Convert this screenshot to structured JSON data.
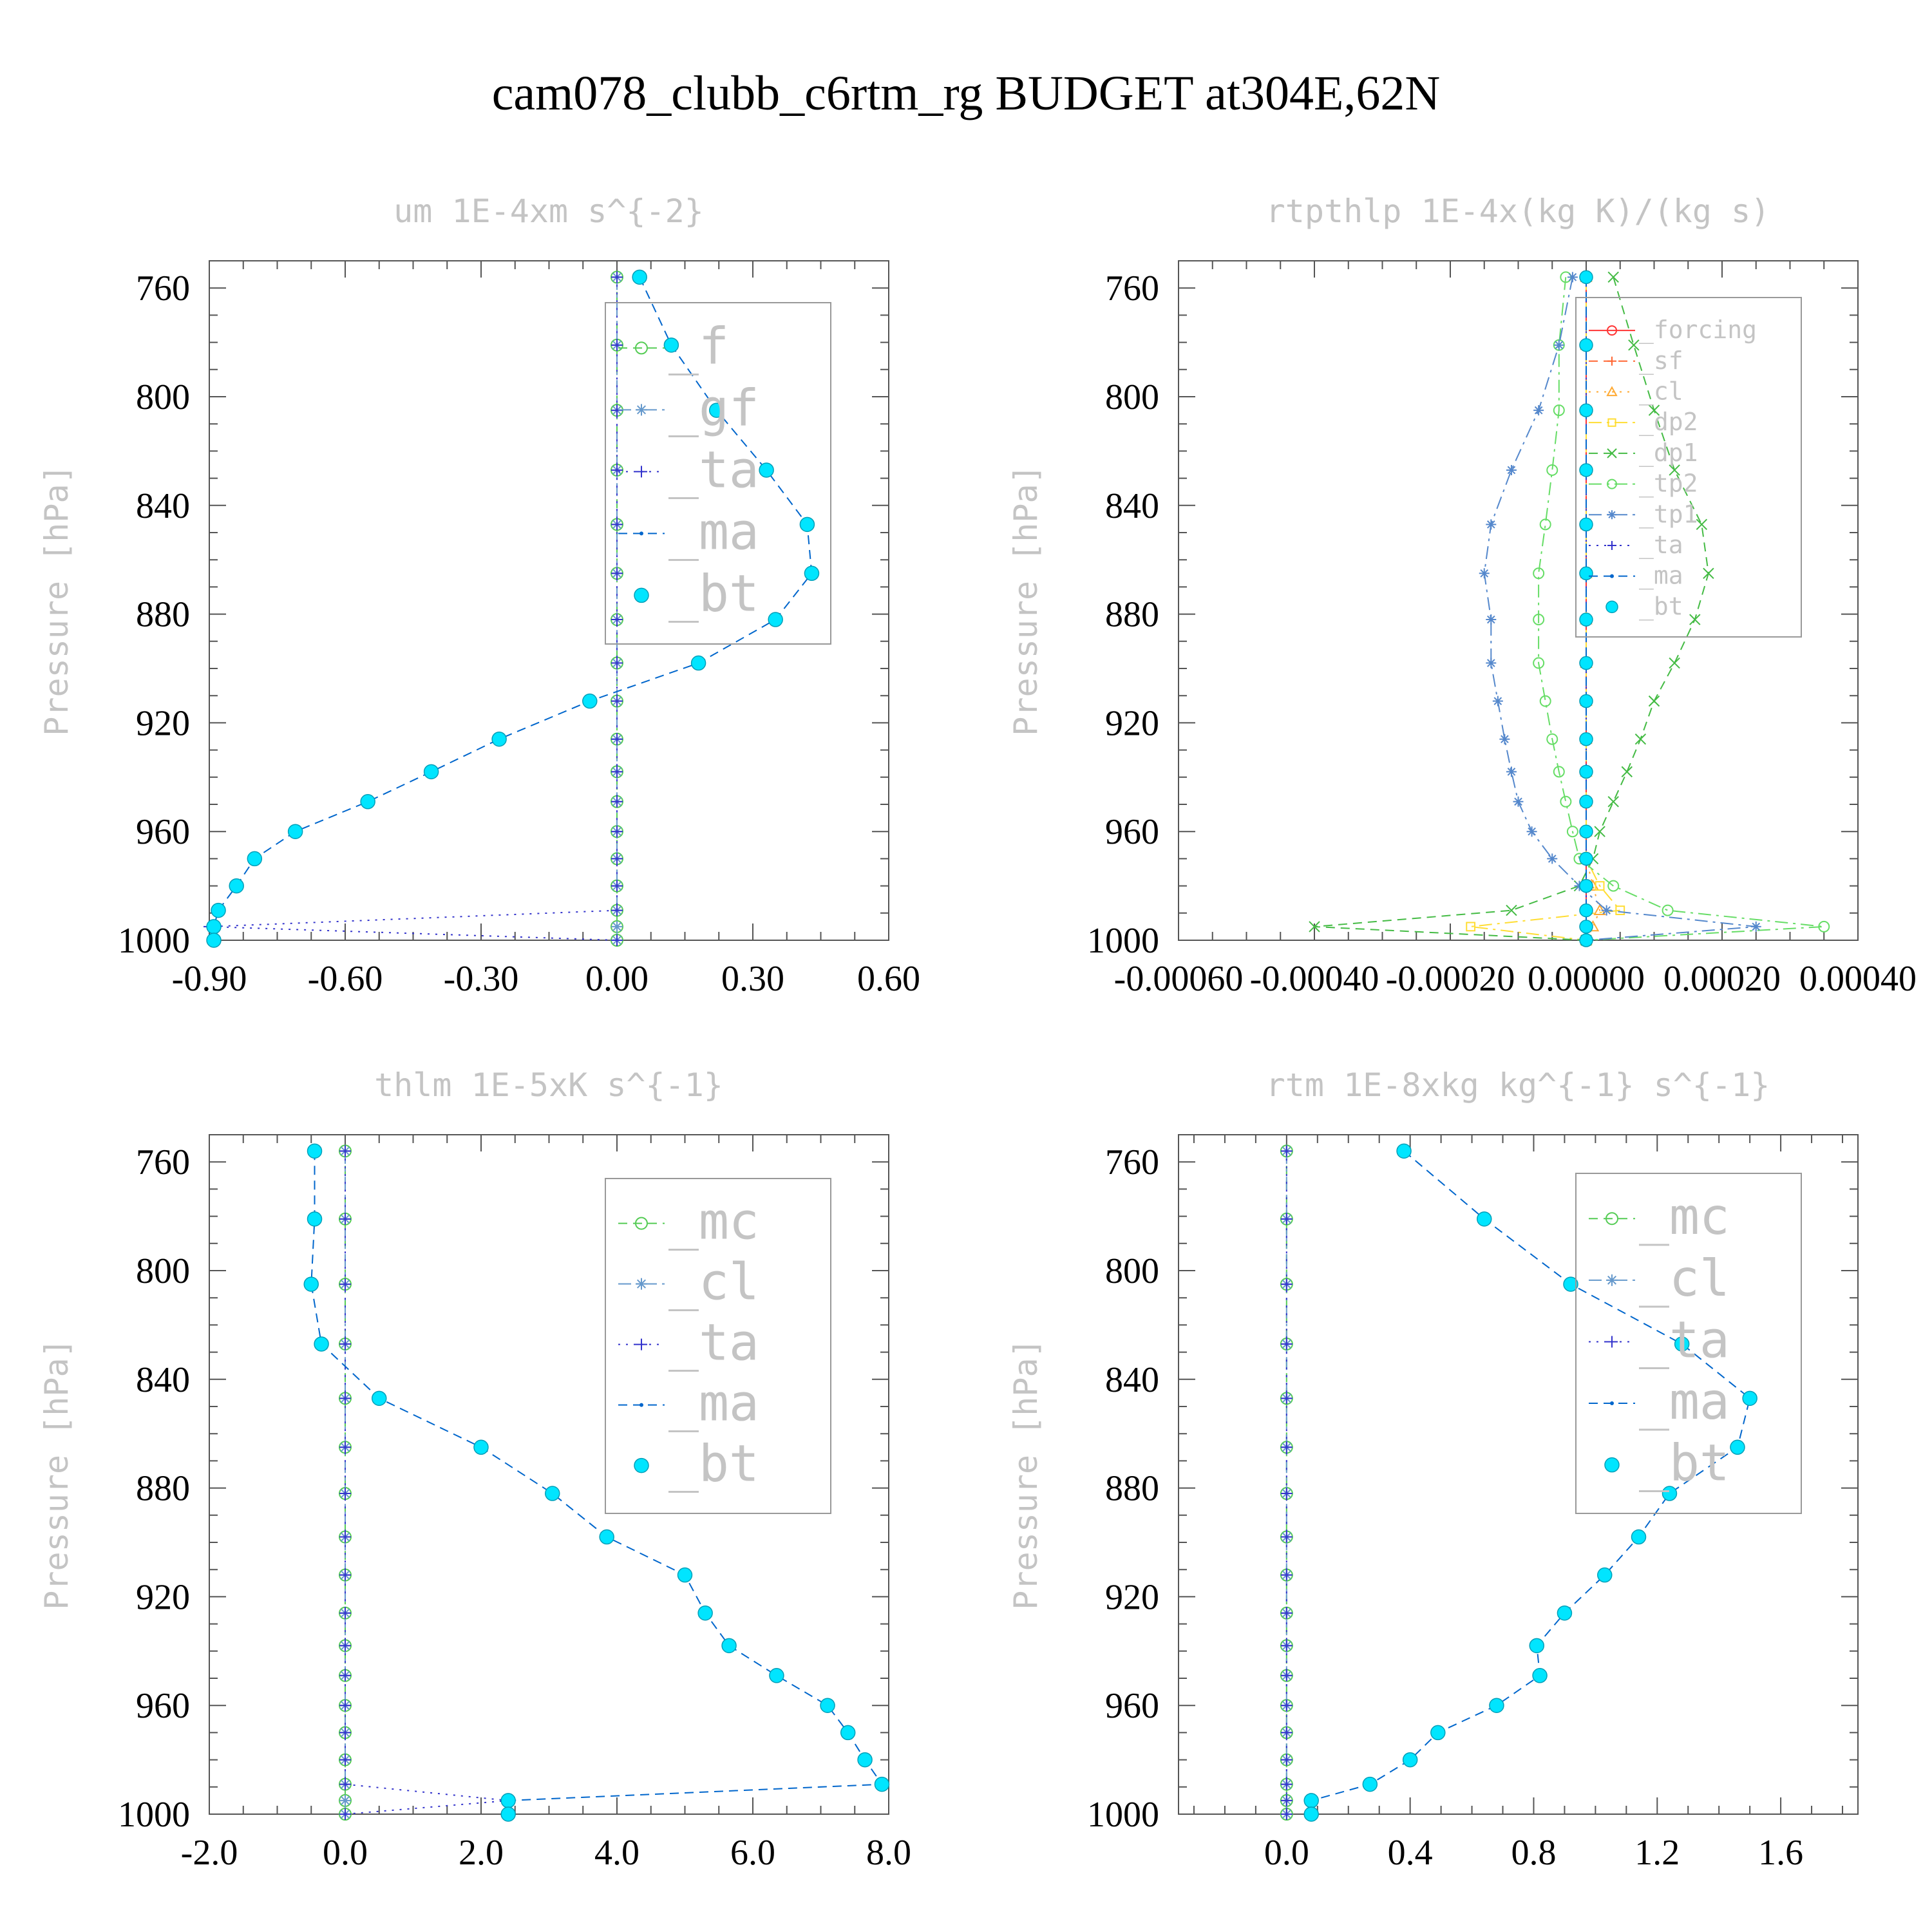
{
  "title": "cam078_clubb_c6rtm_rg  BUDGET at304E,62N",
  "pressure_levels": [
    756,
    781,
    805,
    827,
    847,
    865,
    882,
    898,
    912,
    926,
    938,
    949,
    960,
    970,
    980,
    989,
    995,
    1000
  ],
  "chart_data": [
    {
      "type": "line",
      "title": "um  1E-4xm s^{-2}",
      "ylabel": "Pressure [hPa]",
      "ylim": [
        1000,
        750
      ],
      "xlim": [
        -0.9,
        0.6
      ],
      "xticks": [
        -0.9,
        -0.6,
        -0.3,
        0.0,
        0.3,
        0.6
      ],
      "xtick_labels": [
        "-0.90",
        "-0.60",
        "-0.30",
        "0.00",
        "0.30",
        "0.60"
      ],
      "yticks": [
        760,
        800,
        840,
        880,
        920,
        960,
        1000
      ],
      "legend_position": "top-right",
      "legend_font_size": "large",
      "series": [
        {
          "name": "_f",
          "color": "#55cc55",
          "marker": "circle",
          "dash": "dash",
          "values": [
            0,
            0,
            0,
            0,
            0,
            0,
            0,
            0,
            0,
            0,
            0,
            0,
            0,
            0,
            0,
            0,
            0,
            0
          ]
        },
        {
          "name": "_gf",
          "color": "#6699cc",
          "marker": "asterisk",
          "dash": "dashdot",
          "values": [
            0,
            0,
            0,
            0,
            0,
            0,
            0,
            0,
            0,
            0,
            0,
            0,
            0,
            0,
            0,
            0,
            0,
            0
          ]
        },
        {
          "name": "_ta",
          "color": "#3333cc",
          "marker": "plus",
          "dash": "dot",
          "values": [
            0,
            0,
            0,
            0,
            0,
            0,
            0,
            0,
            0,
            0,
            0,
            0,
            0,
            0,
            0,
            0,
            -0.9,
            0
          ]
        },
        {
          "name": "_ma",
          "color": "#0066cc",
          "marker": "dot",
          "dash": "dash",
          "values": [
            0.05,
            0.12,
            0.22,
            0.33,
            0.42,
            0.43,
            0.35,
            0.18,
            -0.06,
            -0.26,
            -0.41,
            -0.55,
            -0.71,
            -0.8,
            -0.84,
            -0.88,
            -0.89,
            -0.89
          ]
        },
        {
          "name": "_bt",
          "color": "#00e5ff",
          "marker": "filled",
          "dash": "none",
          "values": [
            0.05,
            0.12,
            0.22,
            0.33,
            0.42,
            0.43,
            0.35,
            0.18,
            -0.06,
            -0.26,
            -0.41,
            -0.55,
            -0.71,
            -0.8,
            -0.84,
            -0.88,
            -0.89,
            -0.89
          ]
        }
      ]
    },
    {
      "type": "line",
      "title": "rtpthlp  1E-4x(kg K)/(kg s)",
      "ylabel": "Pressure [hPa]",
      "ylim": [
        1000,
        750
      ],
      "xlim": [
        -0.0006,
        0.0004
      ],
      "xticks": [
        -0.0006,
        -0.0004,
        -0.0002,
        0.0,
        0.0002,
        0.0004
      ],
      "xtick_labels": [
        "-0.00060",
        "-0.00040",
        "-0.00020",
        "0.00000",
        "0.00020",
        "0.00040"
      ],
      "yticks": [
        760,
        800,
        840,
        880,
        920,
        960,
        1000
      ],
      "legend_position": "top-right",
      "legend_font_size": "small",
      "series": [
        {
          "name": "_forcing",
          "color": "#ff3333",
          "marker": "circle",
          "dash": "none",
          "values": [
            0,
            0,
            0,
            0,
            0,
            0,
            0,
            0,
            0,
            0,
            0,
            0,
            0,
            0,
            0,
            0,
            0,
            0
          ]
        },
        {
          "name": "_sf",
          "color": "#ff6633",
          "marker": "plus",
          "dash": "dash",
          "values": [
            0,
            0,
            0,
            0,
            0,
            0,
            0,
            0,
            0,
            0,
            0,
            0,
            0,
            0,
            0,
            0,
            0,
            0
          ]
        },
        {
          "name": "_cl",
          "color": "#ffaa33",
          "marker": "triangle",
          "dash": "dot",
          "values": [
            0,
            0,
            0,
            0,
            0,
            0,
            0,
            0,
            0,
            0,
            0,
            0,
            0,
            0,
            1e-05,
            2e-05,
            1e-05,
            0
          ]
        },
        {
          "name": "_dp2",
          "color": "#ffdd33",
          "marker": "square",
          "dash": "dashdot",
          "values": [
            0,
            0,
            0,
            0,
            0,
            0,
            0,
            0,
            0,
            0,
            0,
            0,
            0,
            0,
            2e-05,
            5e-05,
            -0.00017,
            0
          ]
        },
        {
          "name": "_dp1",
          "color": "#44bb44",
          "marker": "x",
          "dash": "dash",
          "values": [
            4e-05,
            7e-05,
            0.0001,
            0.00013,
            0.00017,
            0.00018,
            0.00016,
            0.00013,
            0.0001,
            8e-05,
            6e-05,
            4e-05,
            2e-05,
            1e-05,
            -1e-05,
            -0.00011,
            -0.0004,
            0
          ]
        },
        {
          "name": "_tp2",
          "color": "#66dd66",
          "marker": "circle",
          "dash": "dashdot",
          "values": [
            -3e-05,
            -4e-05,
            -4e-05,
            -5e-05,
            -6e-05,
            -7e-05,
            -7e-05,
            -7e-05,
            -6e-05,
            -5e-05,
            -4e-05,
            -3e-05,
            -2e-05,
            -1e-05,
            4e-05,
            0.00012,
            0.00035,
            0
          ]
        },
        {
          "name": "_tp1",
          "color": "#5588cc",
          "marker": "asterisk",
          "dash": "dashdot",
          "values": [
            -2e-05,
            -4e-05,
            -7e-05,
            -0.00011,
            -0.00014,
            -0.00015,
            -0.00014,
            -0.00014,
            -0.00013,
            -0.00012,
            -0.00011,
            -0.0001,
            -8e-05,
            -5e-05,
            -1e-05,
            3e-05,
            0.00025,
            0
          ]
        },
        {
          "name": "_ta",
          "color": "#3333cc",
          "marker": "plus",
          "dash": "dot",
          "values": [
            0,
            0,
            0,
            0,
            0,
            0,
            0,
            0,
            0,
            0,
            0,
            0,
            0,
            0,
            0,
            0,
            0,
            0
          ]
        },
        {
          "name": "_ma",
          "color": "#0066cc",
          "marker": "dot",
          "dash": "dash",
          "values": [
            0,
            0,
            0,
            0,
            0,
            0,
            0,
            0,
            0,
            0,
            0,
            0,
            0,
            0,
            0,
            0,
            0,
            0
          ]
        },
        {
          "name": "_bt",
          "color": "#00e5ff",
          "marker": "filled",
          "dash": "none",
          "values": [
            0,
            0,
            0,
            0,
            0,
            0,
            0,
            0,
            0,
            0,
            0,
            0,
            0,
            0,
            0,
            0,
            0,
            0
          ]
        }
      ]
    },
    {
      "type": "line",
      "title": "thlm  1E-5xK s^{-1}",
      "ylabel": "Pressure [hPa]",
      "ylim": [
        1000,
        750
      ],
      "xlim": [
        -2.0,
        8.0
      ],
      "xticks": [
        -2.0,
        0.0,
        2.0,
        4.0,
        6.0,
        8.0
      ],
      "xtick_labels": [
        "-2.0",
        "0.0",
        "2.0",
        "4.0",
        "6.0",
        "8.0"
      ],
      "yticks": [
        760,
        800,
        840,
        880,
        920,
        960,
        1000
      ],
      "legend_position": "top-right",
      "legend_font_size": "large",
      "series": [
        {
          "name": "_mc",
          "color": "#55cc55",
          "marker": "circle",
          "dash": "dash",
          "values": [
            0,
            0,
            0,
            0,
            0,
            0,
            0,
            0,
            0,
            0,
            0,
            0,
            0,
            0,
            0,
            0,
            0,
            0
          ]
        },
        {
          "name": "_cl",
          "color": "#6699cc",
          "marker": "asterisk",
          "dash": "dashdot",
          "values": [
            0,
            0,
            0,
            0,
            0,
            0,
            0,
            0,
            0,
            0,
            0,
            0,
            0,
            0,
            0,
            0,
            0,
            0
          ]
        },
        {
          "name": "_ta",
          "color": "#3333cc",
          "marker": "plus",
          "dash": "dot",
          "values": [
            0,
            0,
            0,
            0,
            0,
            0,
            0,
            0,
            0,
            0,
            0,
            0,
            0,
            0,
            0,
            0,
            2.4,
            0
          ]
        },
        {
          "name": "_ma",
          "color": "#0066cc",
          "marker": "dot",
          "dash": "dash",
          "values": [
            -0.45,
            -0.45,
            -0.5,
            -0.35,
            0.5,
            2.0,
            3.05,
            3.85,
            5.0,
            5.3,
            5.65,
            6.35,
            7.1,
            7.4,
            7.65,
            7.9,
            2.4,
            2.4
          ]
        },
        {
          "name": "_bt",
          "color": "#00e5ff",
          "marker": "filled",
          "dash": "none",
          "values": [
            -0.45,
            -0.45,
            -0.5,
            -0.35,
            0.5,
            2.0,
            3.05,
            3.85,
            5.0,
            5.3,
            5.65,
            6.35,
            7.1,
            7.4,
            7.65,
            7.9,
            2.4,
            2.4
          ]
        }
      ]
    },
    {
      "type": "line",
      "title": "rtm  1E-8xkg kg^{-1} s^{-1}",
      "ylabel": "Pressure [hPa]",
      "ylim": [
        1000,
        750
      ],
      "xlim": [
        -0.35,
        1.85
      ],
      "xticks": [
        0.0,
        0.4,
        0.8,
        1.2,
        1.6
      ],
      "xtick_labels": [
        "0.0",
        "0.4",
        "0.8",
        "1.2",
        "1.6"
      ],
      "yticks": [
        760,
        800,
        840,
        880,
        920,
        960,
        1000
      ],
      "legend_position": "top-right",
      "legend_font_size": "large",
      "series": [
        {
          "name": "_mc",
          "color": "#55cc55",
          "marker": "circle",
          "dash": "dash",
          "values": [
            0,
            0,
            0,
            0,
            0,
            0,
            0,
            0,
            0,
            0,
            0,
            0,
            0,
            0,
            0,
            0,
            0,
            0
          ]
        },
        {
          "name": "_cl",
          "color": "#6699cc",
          "marker": "asterisk",
          "dash": "dashdot",
          "values": [
            0,
            0,
            0,
            0,
            0,
            0,
            0,
            0,
            0,
            0,
            0,
            0,
            0,
            0,
            0,
            0,
            0,
            0
          ]
        },
        {
          "name": "_ta",
          "color": "#3333cc",
          "marker": "plus",
          "dash": "dot",
          "values": [
            0,
            0,
            0,
            0,
            0,
            0,
            0,
            0,
            0,
            0,
            0,
            0,
            0,
            0,
            0,
            0,
            0,
            0
          ]
        },
        {
          "name": "_ma",
          "color": "#0066cc",
          "marker": "dot",
          "dash": "dash",
          "values": [
            0.38,
            0.64,
            0.92,
            1.28,
            1.5,
            1.46,
            1.24,
            1.14,
            1.03,
            0.9,
            0.81,
            0.82,
            0.68,
            0.49,
            0.4,
            0.27,
            0.08,
            0.08
          ]
        },
        {
          "name": "_bt",
          "color": "#00e5ff",
          "marker": "filled",
          "dash": "none",
          "values": [
            0.38,
            0.64,
            0.92,
            1.28,
            1.5,
            1.46,
            1.24,
            1.14,
            1.03,
            0.9,
            0.81,
            0.82,
            0.68,
            0.49,
            0.4,
            0.27,
            0.08,
            0.08
          ]
        }
      ]
    }
  ]
}
